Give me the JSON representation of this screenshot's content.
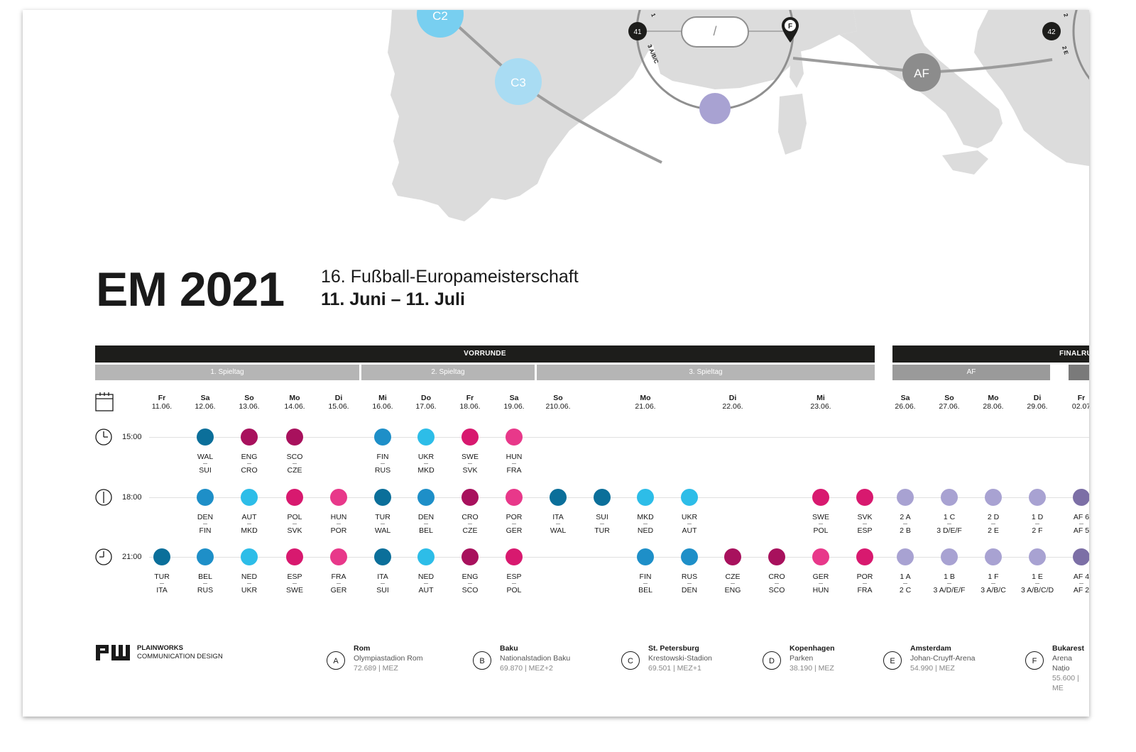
{
  "title": {
    "main": "EM 2021",
    "sub": "16.  Fußball-Europameisterschaft",
    "dates": "11. Juni – 11. Juli"
  },
  "map": {
    "nodes": [
      {
        "label": "C2",
        "color": "#78cff0"
      },
      {
        "label": "C3",
        "color": "#a9dcf3"
      },
      {
        "label": "AF",
        "color": "#8c8c8c"
      }
    ],
    "ring_nodes": [
      {
        "label": "41"
      },
      {
        "label": "42"
      }
    ],
    "ring_text": [
      "3 A/B/C",
      "1",
      "2",
      "2 E"
    ],
    "ring_slot": "/",
    "pin_label": "F"
  },
  "phases": {
    "vorrunde": "VORRUNDE",
    "finalrunde": "FINALRU"
  },
  "spieltage": [
    "1. Spieltag",
    "2. Spieltag",
    "3. Spieltag",
    "AF"
  ],
  "days": [
    {
      "dn": "Fr",
      "date": "11.06."
    },
    {
      "dn": "Sa",
      "date": "12.06."
    },
    {
      "dn": "So",
      "date": "13.06."
    },
    {
      "dn": "Mo",
      "date": "14.06."
    },
    {
      "dn": "Di",
      "date": "15.06."
    },
    {
      "dn": "Mi",
      "date": "16.06."
    },
    {
      "dn": "Do",
      "date": "17.06."
    },
    {
      "dn": "Fr",
      "date": "18.06."
    },
    {
      "dn": "Sa",
      "date": "19.06."
    },
    {
      "dn": "So",
      "date": "210.06."
    },
    {
      "dn": "Mo",
      "date": "21.06."
    },
    {
      "dn": "Di",
      "date": "22.06."
    },
    {
      "dn": "Mi",
      "date": "23.06."
    },
    {
      "dn": "Sa",
      "date": "26.06."
    },
    {
      "dn": "So",
      "date": "27.06."
    },
    {
      "dn": "Mo",
      "date": "28.06."
    },
    {
      "dn": "Di",
      "date": "29.06."
    },
    {
      "dn": "Fr",
      "date": "02.07"
    }
  ],
  "times": [
    "15:00",
    "18:00",
    "21:00"
  ],
  "colors": {
    "A": "#0b6f9a",
    "B": "#1e8fc8",
    "C": "#2dbde8",
    "D": "#a8115d",
    "E": "#d8196f",
    "F": "#e8388a",
    "AF": "#a8a2d2",
    "AF2": "#7c6fa6"
  },
  "matches": [
    {
      "col": 1,
      "row": 0,
      "c": "A",
      "t1": "WAL",
      "t2": "SUI"
    },
    {
      "col": 2,
      "row": 0,
      "c": "D",
      "t1": "ENG",
      "t2": "CRO"
    },
    {
      "col": 3,
      "row": 0,
      "c": "D",
      "t1": "SCO",
      "t2": "CZE"
    },
    {
      "col": 5,
      "row": 0,
      "c": "B",
      "t1": "FIN",
      "t2": "RUS"
    },
    {
      "col": 6,
      "row": 0,
      "c": "C",
      "t1": "UKR",
      "t2": "MKD"
    },
    {
      "col": 7,
      "row": 0,
      "c": "E",
      "t1": "SWE",
      "t2": "SVK"
    },
    {
      "col": 8,
      "row": 0,
      "c": "F",
      "t1": "HUN",
      "t2": "FRA"
    },
    {
      "col": 1,
      "row": 1,
      "c": "B",
      "t1": "DEN",
      "t2": "FIN"
    },
    {
      "col": 2,
      "row": 1,
      "c": "C",
      "t1": "AUT",
      "t2": "MKD"
    },
    {
      "col": 3,
      "row": 1,
      "c": "E",
      "t1": "POL",
      "t2": "SVK"
    },
    {
      "col": 4,
      "row": 1,
      "c": "F",
      "t1": "HUN",
      "t2": "POR"
    },
    {
      "col": 5,
      "row": 1,
      "c": "A",
      "t1": "TUR",
      "t2": "WAL"
    },
    {
      "col": 6,
      "row": 1,
      "c": "B",
      "t1": "DEN",
      "t2": "BEL"
    },
    {
      "col": 7,
      "row": 1,
      "c": "D",
      "t1": "CRO",
      "t2": "CZE"
    },
    {
      "col": 8,
      "row": 1,
      "c": "F",
      "t1": "POR",
      "t2": "GER"
    },
    {
      "col": 9,
      "row": 1,
      "c": "A",
      "t1": "ITA",
      "t2": "WAL"
    },
    {
      "col": 9.5,
      "row": 1,
      "c": "A",
      "t1": "SUI",
      "t2": "TUR"
    },
    {
      "col": 10,
      "row": 1,
      "c": "C",
      "t1": "MKD",
      "t2": "NED"
    },
    {
      "col": 10.5,
      "row": 1,
      "c": "C",
      "t1": "UKR",
      "t2": "AUT"
    },
    {
      "col": 12,
      "row": 1,
      "c": "E",
      "t1": "SWE",
      "t2": "POL"
    },
    {
      "col": 12.5,
      "row": 1,
      "c": "E",
      "t1": "SVK",
      "t2": "ESP"
    },
    {
      "col": 13,
      "row": 1,
      "c": "AF",
      "t1": "2 A",
      "t2": "2 B"
    },
    {
      "col": 14,
      "row": 1,
      "c": "AF",
      "t1": "1 C",
      "t2": "3 D/E/F"
    },
    {
      "col": 15,
      "row": 1,
      "c": "AF",
      "t1": "2 D",
      "t2": "2 E"
    },
    {
      "col": 16,
      "row": 1,
      "c": "AF",
      "t1": "1 D",
      "t2": "2 F"
    },
    {
      "col": 17,
      "row": 1,
      "c": "AF2",
      "t1": "AF 6",
      "t2": "AF 5"
    },
    {
      "col": 0,
      "row": 2,
      "c": "A",
      "t1": "TUR",
      "t2": "ITA"
    },
    {
      "col": 1,
      "row": 2,
      "c": "B",
      "t1": "BEL",
      "t2": "RUS"
    },
    {
      "col": 2,
      "row": 2,
      "c": "C",
      "t1": "NED",
      "t2": "UKR"
    },
    {
      "col": 3,
      "row": 2,
      "c": "E",
      "t1": "ESP",
      "t2": "SWE"
    },
    {
      "col": 4,
      "row": 2,
      "c": "F",
      "t1": "FRA",
      "t2": "GER"
    },
    {
      "col": 5,
      "row": 2,
      "c": "A",
      "t1": "ITA",
      "t2": "SUI"
    },
    {
      "col": 6,
      "row": 2,
      "c": "C",
      "t1": "NED",
      "t2": "AUT"
    },
    {
      "col": 7,
      "row": 2,
      "c": "D",
      "t1": "ENG",
      "t2": "SCO"
    },
    {
      "col": 8,
      "row": 2,
      "c": "E",
      "t1": "ESP",
      "t2": "POL"
    },
    {
      "col": 10,
      "row": 2,
      "c": "B",
      "t1": "FIN",
      "t2": "BEL"
    },
    {
      "col": 10.5,
      "row": 2,
      "c": "B",
      "t1": "RUS",
      "t2": "DEN"
    },
    {
      "col": 11,
      "row": 2,
      "c": "D",
      "t1": "CZE",
      "t2": "ENG"
    },
    {
      "col": 11.5,
      "row": 2,
      "c": "D",
      "t1": "CRO",
      "t2": "SCO"
    },
    {
      "col": 12,
      "row": 2,
      "c": "F",
      "t1": "GER",
      "t2": "HUN"
    },
    {
      "col": 12.5,
      "row": 2,
      "c": "E",
      "t1": "POR",
      "t2": "FRA"
    },
    {
      "col": 13,
      "row": 2,
      "c": "AF",
      "t1": "1 A",
      "t2": "2 C"
    },
    {
      "col": 14,
      "row": 2,
      "c": "AF",
      "t1": "1 B",
      "t2": "3 A/D/E/F"
    },
    {
      "col": 15,
      "row": 2,
      "c": "AF",
      "t1": "1 F",
      "t2": "3 A/B/C"
    },
    {
      "col": 16,
      "row": 2,
      "c": "AF",
      "t1": "1 E",
      "t2": "3 A/B/C/D"
    },
    {
      "col": 17,
      "row": 2,
      "c": "AF2",
      "t1": "AF 4",
      "t2": "AF 2"
    }
  ],
  "logo": {
    "mark": "PW",
    "name": "PLAINWORKS",
    "tag": "COMMUNICATION DESIGN"
  },
  "venues": [
    {
      "letter": "A",
      "city": "Rom",
      "stadium": "Olympiastadion Rom",
      "info": "72.689 | MEZ"
    },
    {
      "letter": "B",
      "city": "Baku",
      "stadium": "Nationalstadion Baku",
      "info": "69.870 | MEZ+2"
    },
    {
      "letter": "C",
      "city": "St. Petersburg",
      "stadium": "Krestowski-Stadion",
      "info": "69.501 | MEZ+1"
    },
    {
      "letter": "D",
      "city": "Kopenhagen",
      "stadium": "Parken",
      "info": "38.190 | MEZ"
    },
    {
      "letter": "E",
      "city": "Amsterdam",
      "stadium": "Johan-Cruyff-Arena",
      "info": "54.990 | MEZ"
    },
    {
      "letter": "F",
      "city": "Bukarest",
      "stadium": "Arena Națio",
      "info": "55.600 | ME"
    }
  ]
}
